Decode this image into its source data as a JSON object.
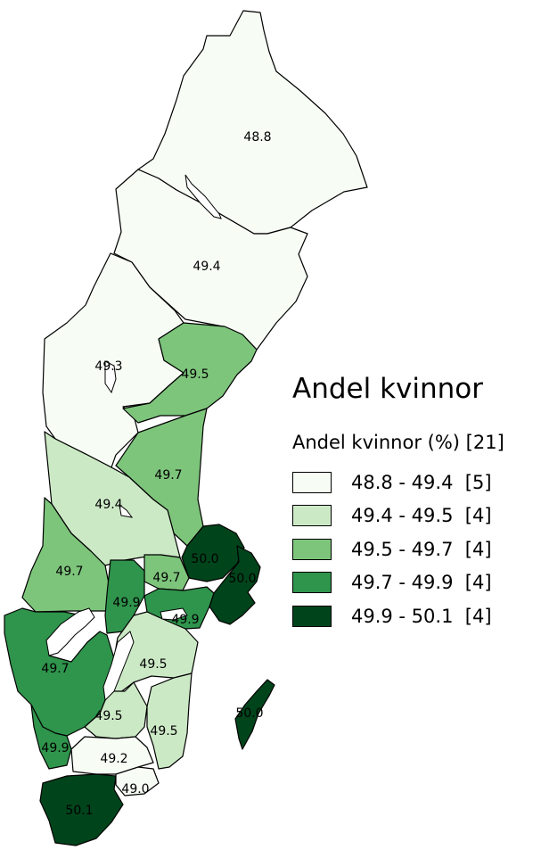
{
  "legend": {
    "title": "Andel kvinnor",
    "subtitle": "Andel kvinnor (%) [21]",
    "classes": [
      {
        "label": "48.8 - 49.4  [5]",
        "color": "#f7fcf5"
      },
      {
        "label": "49.4 - 49.5  [4]",
        "color": "#cce9c6"
      },
      {
        "label": "49.5 - 49.7  [4]",
        "color": "#7ec57c"
      },
      {
        "label": "49.7 - 49.9  [4]",
        "color": "#2f944c"
      },
      {
        "label": "49.9 - 50.1  [4]",
        "color": "#00441b"
      }
    ]
  },
  "regions": [
    {
      "id": "norrbotten",
      "value": "48.8",
      "class": 0
    },
    {
      "id": "vasterbotten",
      "value": "49.4",
      "class": 0
    },
    {
      "id": "jamtland",
      "value": "49.3",
      "class": 0
    },
    {
      "id": "vasternorrland",
      "value": "49.5",
      "class": 2
    },
    {
      "id": "gavleborg",
      "value": "49.7",
      "class": 2
    },
    {
      "id": "dalarna",
      "value": "49.4",
      "class": 1
    },
    {
      "id": "varmland",
      "value": "49.7",
      "class": 2
    },
    {
      "id": "uppsala",
      "value": "50.0",
      "class": 4
    },
    {
      "id": "stockholm",
      "value": "50.0",
      "class": 4
    },
    {
      "id": "vastmanland",
      "value": "49.7",
      "class": 2
    },
    {
      "id": "orebro",
      "value": "49.9",
      "class": 3
    },
    {
      "id": "sodermanland",
      "value": "49.9",
      "class": 3
    },
    {
      "id": "vastra-gotaland",
      "value": "49.7",
      "class": 3
    },
    {
      "id": "ostergotland",
      "value": "49.5",
      "class": 1
    },
    {
      "id": "jonkoping",
      "value": "49.5",
      "class": 1
    },
    {
      "id": "kalmar",
      "value": "49.5",
      "class": 1
    },
    {
      "id": "halland",
      "value": "49.9",
      "class": 3
    },
    {
      "id": "kronoberg",
      "value": "49.2",
      "class": 0
    },
    {
      "id": "blekinge",
      "value": "49.0",
      "class": 0
    },
    {
      "id": "skane",
      "value": "50.1",
      "class": 4
    },
    {
      "id": "gotland",
      "value": "50.0",
      "class": 4
    }
  ]
}
